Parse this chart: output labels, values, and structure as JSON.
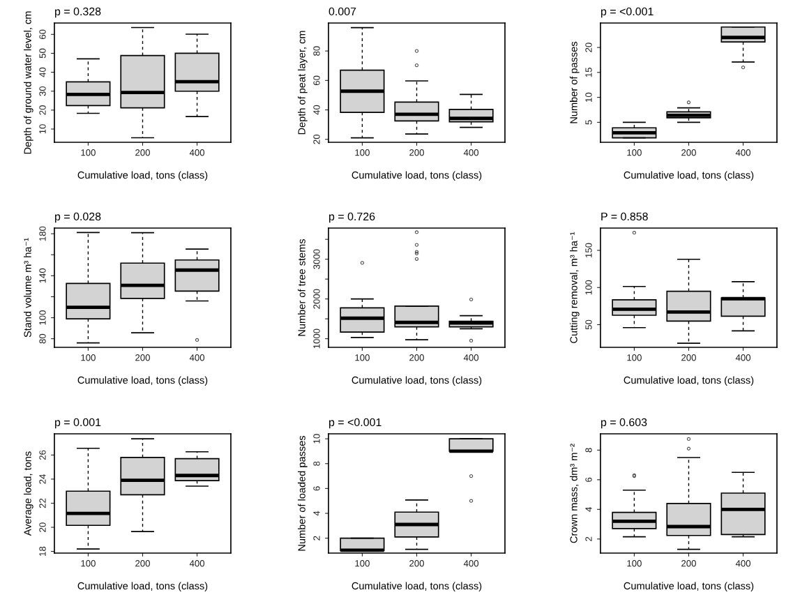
{
  "chart_data": [
    {
      "type": "box",
      "title": "p = 0.328",
      "xlabel": "Cumulative load, tons (class)",
      "ylabel": "Depth of ground water level, cm",
      "categories": [
        "100",
        "200",
        "400"
      ],
      "color": "#d3d3d3",
      "ylim": [
        3,
        66
      ],
      "yticks": [
        10,
        20,
        30,
        40,
        50,
        60
      ],
      "boxes": [
        {
          "low": 18.3,
          "q1": 22.4,
          "median": 28.3,
          "q3": 34.9,
          "high": 47.1
        },
        {
          "low": 5.4,
          "q1": 21.2,
          "median": 29.3,
          "q3": 48.8,
          "high": 63.6
        },
        {
          "low": 16.6,
          "q1": 30,
          "median": 35,
          "q3": 50,
          "high": 60.1
        }
      ]
    },
    {
      "type": "box",
      "title": "0.007",
      "xlabel": "Cumulative load, tons (class)",
      "ylabel": "Depth of peat layer, cm",
      "categories": [
        "100",
        "200",
        "400"
      ],
      "color": "#d3d3d3",
      "ylim": [
        18,
        99
      ],
      "yticks": [
        20,
        40,
        60,
        80
      ],
      "boxes": [
        {
          "low": 21,
          "q1": 38.3,
          "median": 52.7,
          "q3": 67,
          "high": 95.9
        },
        {
          "low": 23.6,
          "q1": 32.5,
          "median": 37,
          "q3": 45.3,
          "high": 59.7,
          "outliers": [
            70.3,
            80
          ]
        },
        {
          "low": 28.1,
          "q1": 31.9,
          "median": 34.2,
          "q3": 40.3,
          "high": 50.5
        }
      ]
    },
    {
      "type": "box",
      "title": "p = <0.001",
      "xlabel": "Cumulative load, tons (class)",
      "ylabel": "Number of passes",
      "categories": [
        "100",
        "200",
        "400"
      ],
      "color": "#d3d3d3",
      "ylim": [
        1,
        24.9
      ],
      "yticks": [
        5,
        10,
        15,
        20
      ],
      "boxes": [
        {
          "low": 1.9,
          "q1": 1.9,
          "median": 2.9,
          "q3": 3.9,
          "high": 5
        },
        {
          "low": 5,
          "q1": 5.9,
          "median": 6.4,
          "q3": 7.1,
          "high": 7.9,
          "outliers": [
            9
          ]
        },
        {
          "low": 17.1,
          "q1": 21.1,
          "median": 22,
          "q3": 24.1,
          "high": 24.1,
          "outliers": [
            16
          ]
        }
      ]
    },
    {
      "type": "box",
      "title": "p = 0.028",
      "xlabel": "Cumulative load, tons (class)",
      "ylabel": "Stand volume m³ ha⁻¹",
      "categories": [
        "100",
        "200",
        "400"
      ],
      "color": "#d3d3d3",
      "ylim": [
        71.8,
        185.4
      ],
      "yticks": [
        80,
        100,
        {
          "value": 120,
          "label": null
        },
        140,
        {
          "value": 160,
          "label": null
        },
        180
      ],
      "boxes": [
        {
          "low": 76,
          "q1": 99,
          "median": 109.9,
          "q3": 132.7,
          "high": 181.2
        },
        {
          "low": 85.7,
          "q1": 118.4,
          "median": 130.8,
          "q3": 152,
          "high": 181
        },
        {
          "low": 116,
          "q1": 125.4,
          "median": 145.4,
          "q3": 155,
          "high": 165.4,
          "outliers": [
            78.8
          ]
        }
      ]
    },
    {
      "type": "box",
      "title": "p = 0.726",
      "xlabel": "Cumulative load, tons (class)",
      "ylabel": "Number of tree stems",
      "categories": [
        "100",
        "200",
        "400"
      ],
      "color": "#d3d3d3",
      "ylim": [
        783,
        3783
      ],
      "yticks": [
        1000,
        {
          "value": 1500,
          "label": null
        },
        2000,
        {
          "value": 2500,
          "label": null
        },
        3000,
        {
          "value": 3500,
          "label": null
        }
      ],
      "boxes": [
        {
          "low": 1031,
          "q1": 1168,
          "median": 1516,
          "q3": 1776,
          "high": 2000,
          "outliers": [
            2907
          ]
        },
        {
          "low": 975,
          "q1": 1298,
          "median": 1410,
          "q3": 1820,
          "high": 1820,
          "outliers": [
            3006,
            3143,
            3186,
            3360,
            3678
          ]
        },
        {
          "low": 1249,
          "q1": 1298,
          "median": 1398,
          "q3": 1441,
          "high": 1578,
          "outliers": [
            950,
            1988
          ]
        }
      ]
    },
    {
      "type": "box",
      "title": "P = 0.858",
      "xlabel": "Cumulative load, tons (class)",
      "ylabel": "Cutting removal, m³ ha⁻¹",
      "categories": [
        "100",
        "200",
        "400"
      ],
      "color": "#d3d3d3",
      "ylim": [
        19.5,
        180
      ],
      "yticks": [
        50,
        100,
        150
      ],
      "boxes": [
        {
          "low": 46,
          "q1": 62.7,
          "median": 70.8,
          "q3": 83.4,
          "high": 101.4,
          "outliers": [
            173.7
          ]
        },
        {
          "low": 25,
          "q1": 54.8,
          "median": 67,
          "q3": 95,
          "high": 138
        },
        {
          "low": 41.7,
          "q1": 61.4,
          "median": 85,
          "q3": 86,
          "high": 107.8
        }
      ]
    },
    {
      "type": "box",
      "title": "p = 0.001",
      "xlabel": "Cumulative load, tons (class)",
      "ylabel": "Average load, tons",
      "categories": [
        "100",
        "200",
        "400"
      ],
      "color": "#d3d3d3",
      "ylim": [
        17.86,
        27.76
      ],
      "yticks": [
        18,
        20,
        22,
        24,
        26
      ],
      "boxes": [
        {
          "low": 18.2,
          "q1": 20.16,
          "median": 21.15,
          "q3": 23,
          "high": 26.56
        },
        {
          "low": 19.65,
          "q1": 22.7,
          "median": 23.9,
          "q3": 25.8,
          "high": 27.35
        },
        {
          "low": 23.42,
          "q1": 23.87,
          "median": 24.3,
          "q3": 25.7,
          "high": 26.27
        }
      ]
    },
    {
      "type": "box",
      "title": "p = <0.001",
      "xlabel": "Cumulative load, tons (class)",
      "ylabel": "Number of loaded passes",
      "categories": [
        "100",
        "200",
        "400"
      ],
      "color": "#d3d3d3",
      "ylim": [
        0.8,
        10.4
      ],
      "yticks": [
        2,
        4,
        6,
        8,
        10
      ],
      "boxes": [
        {
          "low": 1,
          "q1": 1,
          "median": 1.03,
          "q3": 2,
          "high": 2
        },
        {
          "low": 1.1,
          "q1": 2.1,
          "median": 3.1,
          "q3": 4.1,
          "high": 5.07
        },
        {
          "low": 9,
          "q1": 9,
          "median": 9,
          "q3": 10,
          "high": 10,
          "outliers": [
            5,
            7
          ]
        }
      ]
    },
    {
      "type": "box",
      "title": "p = 0.603",
      "xlabel": "Cumulative load, tons (class)",
      "ylabel": "Crown mass, dm³ m⁻²",
      "categories": [
        "100",
        "200",
        "400"
      ],
      "color": "#d3d3d3",
      "ylim": [
        1.05,
        9.1
      ],
      "yticks": [
        2,
        4,
        6,
        8
      ],
      "boxes": [
        {
          "low": 2.15,
          "q1": 2.7,
          "median": 3.2,
          "q3": 3.8,
          "high": 5.3,
          "outliers": [
            6.25,
            6.3
          ]
        },
        {
          "low": 1.3,
          "q1": 2.24,
          "median": 2.84,
          "q3": 4.4,
          "high": 7.5,
          "outliers": [
            8.1,
            8.75
          ]
        },
        {
          "low": 2.15,
          "q1": 2.3,
          "median": 4,
          "q3": 5.1,
          "high": 6.5
        }
      ]
    }
  ]
}
